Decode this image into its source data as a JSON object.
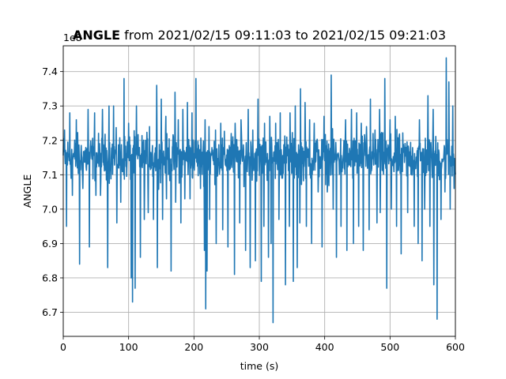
{
  "chart_data": {
    "type": "line",
    "title_bold": "ANGLE",
    "title_rest": " from 2021/02/15 09:11:03 to 2021/02/15 09:21:03",
    "xlabel": "time (s)",
    "ylabel": "ANGLE",
    "offset_label": "1e8",
    "xlim": [
      0,
      600
    ],
    "ylim": [
      6.63,
      7.475
    ],
    "y_scale_note": "values in units of 1e8",
    "xticks": [
      0,
      100,
      200,
      300,
      400,
      500,
      600
    ],
    "xtick_labels": [
      "0",
      "100",
      "200",
      "300",
      "400",
      "500",
      "600"
    ],
    "yticks": [
      6.7,
      6.8,
      6.9,
      7.0,
      7.1,
      7.2,
      7.3,
      7.4
    ],
    "ytick_labels": [
      "6.7",
      "6.8",
      "6.9",
      "7.0",
      "7.1",
      "7.2",
      "7.3",
      "7.4"
    ],
    "grid": true,
    "colors": {
      "series": "#1f77b4",
      "grid": "#b0b0b0"
    },
    "series": [
      {
        "base": 7.15,
        "noise_halfwidth": 0.075,
        "x_step": 0.5,
        "spikes_up": [
          [
            2,
            7.23
          ],
          [
            10,
            7.28
          ],
          [
            20,
            7.26
          ],
          [
            38,
            7.29
          ],
          [
            48,
            7.28
          ],
          [
            60,
            7.29
          ],
          [
            70,
            7.3
          ],
          [
            77,
            7.3
          ],
          [
            93,
            7.38
          ],
          [
            100,
            7.25
          ],
          [
            112,
            7.3
          ],
          [
            118,
            7.25
          ],
          [
            124,
            7.28
          ],
          [
            132,
            7.24
          ],
          [
            143,
            7.36
          ],
          [
            150,
            7.32
          ],
          [
            157,
            7.27
          ],
          [
            165,
            7.28
          ],
          [
            171,
            7.34
          ],
          [
            176,
            7.26
          ],
          [
            183,
            7.29
          ],
          [
            190,
            7.31
          ],
          [
            197,
            7.28
          ],
          [
            203,
            7.38
          ],
          [
            210,
            7.24
          ],
          [
            217,
            7.26
          ],
          [
            223,
            7.24
          ],
          [
            233,
            7.23
          ],
          [
            241,
            7.25
          ],
          [
            257,
            7.22
          ],
          [
            263,
            7.25
          ],
          [
            272,
            7.26
          ],
          [
            283,
            7.29
          ],
          [
            290,
            7.23
          ],
          [
            298,
            7.32
          ],
          [
            303,
            7.33
          ],
          [
            308,
            7.25
          ],
          [
            316,
            7.27
          ],
          [
            325,
            7.25
          ],
          [
            332,
            7.28
          ],
          [
            340,
            7.32
          ],
          [
            347,
            7.28
          ],
          [
            355,
            7.3
          ],
          [
            363,
            7.35
          ],
          [
            370,
            7.31
          ],
          [
            377,
            7.26
          ],
          [
            384,
            7.25
          ],
          [
            390,
            7.24
          ],
          [
            399,
            7.27
          ],
          [
            410,
            7.39
          ],
          [
            418,
            7.28
          ],
          [
            425,
            7.24
          ],
          [
            432,
            7.26
          ],
          [
            441,
            7.29
          ],
          [
            449,
            7.28
          ],
          [
            456,
            7.25
          ],
          [
            464,
            7.24
          ],
          [
            470,
            7.32
          ],
          [
            477,
            7.23
          ],
          [
            484,
            7.29
          ],
          [
            492,
            7.38
          ],
          [
            500,
            7.26
          ],
          [
            508,
            7.27
          ],
          [
            517,
            7.28
          ],
          [
            527,
            7.31
          ],
          [
            537,
            7.3
          ],
          [
            545,
            7.26
          ],
          [
            553,
            7.31
          ],
          [
            558,
            7.33
          ],
          [
            566,
            7.29
          ],
          [
            578,
            7.25
          ],
          [
            586,
            7.44
          ],
          [
            590,
            7.37
          ],
          [
            596,
            7.3
          ]
        ],
        "spikes_down": [
          [
            5,
            6.95
          ],
          [
            14,
            7.04
          ],
          [
            25,
            6.84
          ],
          [
            30,
            7.06
          ],
          [
            40,
            6.89
          ],
          [
            50,
            7.04
          ],
          [
            57,
            7.04
          ],
          [
            68,
            6.83
          ],
          [
            82,
            6.96
          ],
          [
            88,
            7.02
          ],
          [
            104,
            6.8
          ],
          [
            106,
            6.73
          ],
          [
            110,
            6.77
          ],
          [
            118,
            6.86
          ],
          [
            124,
            6.97
          ],
          [
            130,
            6.99
          ],
          [
            138,
            6.97
          ],
          [
            144,
            6.83
          ],
          [
            152,
            6.97
          ],
          [
            158,
            7.03
          ],
          [
            165,
            6.82
          ],
          [
            172,
            7.02
          ],
          [
            180,
            6.96
          ],
          [
            186,
            7.03
          ],
          [
            194,
            7.03
          ],
          [
            210,
            7.06
          ],
          [
            216,
            6.88
          ],
          [
            218,
            6.71
          ],
          [
            220,
            6.82
          ],
          [
            224,
            6.97
          ],
          [
            234,
            6.9
          ],
          [
            244,
            6.94
          ],
          [
            252,
            6.89
          ],
          [
            262,
            6.81
          ],
          [
            270,
            6.96
          ],
          [
            279,
            6.88
          ],
          [
            286,
            6.83
          ],
          [
            294,
            6.85
          ],
          [
            303,
            6.79
          ],
          [
            307,
            6.95
          ],
          [
            314,
            6.86
          ],
          [
            318,
            6.9
          ],
          [
            321,
            6.67
          ],
          [
            330,
            6.97
          ],
          [
            340,
            6.78
          ],
          [
            346,
            6.95
          ],
          [
            352,
            6.79
          ],
          [
            358,
            6.83
          ],
          [
            362,
            6.96
          ],
          [
            372,
            6.95
          ],
          [
            380,
            6.9
          ],
          [
            390,
            7.05
          ],
          [
            396,
            6.89
          ],
          [
            404,
            7.05
          ],
          [
            413,
            7.0
          ],
          [
            418,
            6.86
          ],
          [
            425,
            6.95
          ],
          [
            434,
            6.88
          ],
          [
            444,
            6.9
          ],
          [
            452,
            6.95
          ],
          [
            459,
            6.88
          ],
          [
            468,
            6.94
          ],
          [
            480,
            6.96
          ],
          [
            485,
            6.99
          ],
          [
            495,
            6.77
          ],
          [
            502,
            7.0
          ],
          [
            510,
            6.95
          ],
          [
            517,
            6.87
          ],
          [
            527,
            6.99
          ],
          [
            537,
            6.95
          ],
          [
            543,
            6.9
          ],
          [
            549,
            6.85
          ],
          [
            553,
            7.0
          ],
          [
            561,
            6.95
          ],
          [
            567,
            6.78
          ],
          [
            572,
            6.68
          ],
          [
            578,
            6.97
          ],
          [
            584,
            7.05
          ],
          [
            592,
            7.0
          ],
          [
            598,
            7.06
          ]
        ]
      }
    ]
  }
}
